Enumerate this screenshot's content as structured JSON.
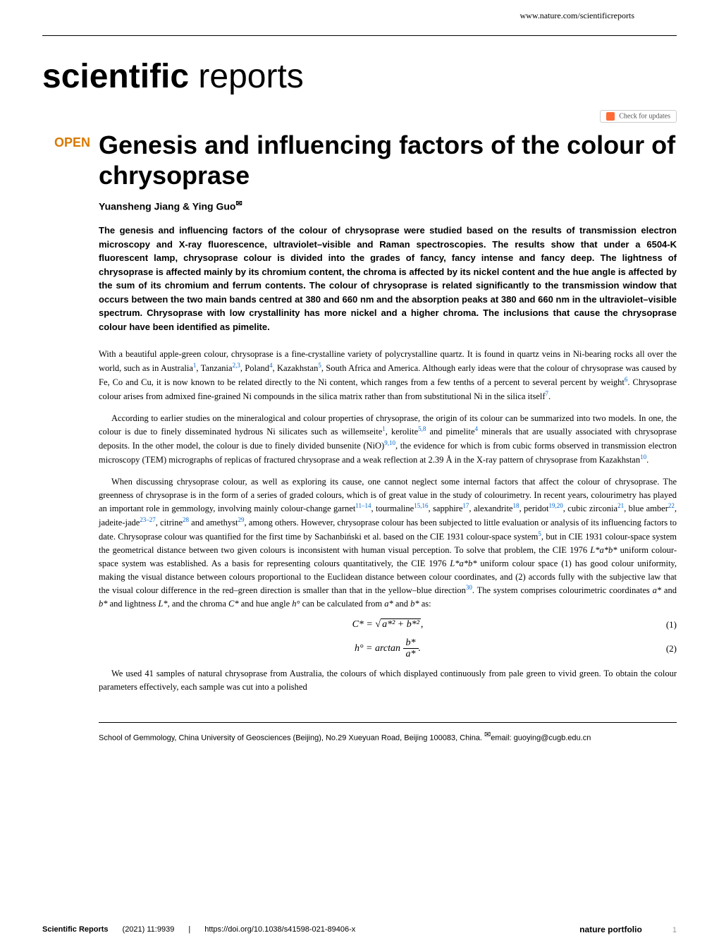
{
  "header": {
    "url": "www.nature.com/scientificreports"
  },
  "journal": {
    "name_bold": "scientific",
    "name_light": " reports"
  },
  "updates": {
    "label": "Check for updates"
  },
  "article": {
    "open_label": "OPEN",
    "title": "Genesis and influencing factors of the colour of chrysoprase",
    "authors": "Yuansheng Jiang & Ying Guo",
    "author_mark": "✉"
  },
  "abstract": {
    "text": "The genesis and influencing factors of the colour of chrysoprase were studied based on the results of transmission electron microscopy and X-ray fluorescence, ultraviolet–visible and Raman spectroscopies. The results show that under a 6504-K fluorescent lamp, chrysoprase colour is divided into the grades of fancy, fancy intense and fancy deep. The lightness of chrysoprase is affected mainly by its chromium content, the chroma is affected by its nickel content and the hue angle is affected by the sum of its chromium and ferrum contents. The colour of chrysoprase is related significantly to the transmission window that occurs between the two main bands centred at 380 and 660 nm and the absorption peaks at 380 and 660 nm in the ultraviolet–visible spectrum. Chrysoprase with low crystallinity has more nickel and a higher chroma. The inclusions that cause the chrysoprase colour have been identified as pimelite."
  },
  "paragraphs": {
    "p1": "With a beautiful apple-green colour, chrysoprase is a fine-crystalline variety of polycrystalline quartz. It is found in quartz veins in Ni-bearing rocks all over the world, such as in Australia",
    "p1b": ", Tanzania",
    "p1c": ", Poland",
    "p1d": ", Kazakhstan",
    "p1e": ", South Africa and America. Although early ideas were that the colour of chrysoprase was caused by Fe, Co and Cu, it is now known to be related directly to the Ni content, which ranges from a few tenths of a percent to several percent by weight",
    "p1f": ". Chrysoprase colour arises from admixed fine-grained Ni compounds in the silica matrix rather than from substitutional Ni in the silica itself",
    "p1g": ".",
    "p2a": "According to earlier studies on the mineralogical and colour properties of chrysoprase, the origin of its colour can be summarized into two models. In one, the colour is due to finely disseminated hydrous Ni silicates such as willemseite",
    "p2b": ", kerolite",
    "p2c": " and pimelite",
    "p2d": " minerals that are usually associated with chrysoprase deposits. In the other model, the colour is due to finely divided bunsenite (NiO)",
    "p2e": ", the evidence for which is from cubic forms observed in transmission electron microscopy (TEM) micrographs of replicas of fractured chrysoprase and a weak reflection at 2.39 Å in the X-ray pattern of chrysoprase from Kazakhstan",
    "p2f": ".",
    "p3a": "When discussing chrysoprase colour, as well as exploring its cause, one cannot neglect some internal factors that affect the colour of chrysoprase. The greenness of chrysoprase is in the form of a series of graded colours, which is of great value in the study of colourimetry. In recent years, colourimetry has played an important role in gemmology, involving mainly colour-change garnet",
    "p3b": ", tourmaline",
    "p3c": ", sapphire",
    "p3d": ", alexandrite",
    "p3e": ", peridot",
    "p3f": ", cubic zirconia",
    "p3g": ", blue amber",
    "p3h": ", jadeite-jade",
    "p3i": ", citrine",
    "p3j": " and amethyst",
    "p3k": ", among others. However, chrysoprase colour has been subjected to little evaluation or analysis of its influencing factors to date. Chrysoprase colour was quantified for the first time by Sachanbiński et al. based on the CIE 1931 colour-space system",
    "p3l": ", but in CIE 1931 colour-space system the geometrical distance between two given colours is inconsistent with human visual perception. To solve that problem, the CIE 1976 ",
    "p3m": " uniform colour-space system was established. As a basis for representing colours quantitatively, the CIE 1976 ",
    "p3n": " uniform colour space (1) has good colour uniformity, making the visual distance between colours proportional to the Euclidean distance between colour coordinates, and (2) accords fully with the subjective law that the visual colour difference in the red–green direction is smaller than that in the yellow–blue direction",
    "p3o": ". The system comprises colourimetric coordinates ",
    "p3p": " and ",
    "p3q": " and lightness ",
    "p3r": ", and the chroma ",
    "p3s": " and hue angle ",
    "p3t": " can be calculated from ",
    "p3u": " and ",
    "p3v": " as:",
    "p4": "We used 41 samples of natural chrysoprase from Australia, the colours of which displayed continuously from pale green to vivid green. To obtain the colour parameters effectively, each sample was cut into a polished"
  },
  "refs": {
    "r1": "1",
    "r23": "2,3",
    "r4": "4",
    "r5": "5",
    "r6": "6",
    "r7": "7",
    "r58": "5,8",
    "r910": "9,10",
    "r10": "10",
    "r1114": "11–14",
    "r1516": "15,16",
    "r17": "17",
    "r18": "18",
    "r1920": "19,20",
    "r21": "21",
    "r22": "22",
    "r2327": "23–27",
    "r28": "28",
    "r29": "29",
    "r30": "30"
  },
  "vars": {
    "lab": "L*a*b*",
    "a": "a*",
    "b": "b*",
    "L": "L*",
    "C": "C*",
    "h": "h°"
  },
  "equations": {
    "eq1_lhs": "C* = ",
    "eq1_sqrt": "a*² + b*²",
    "eq1_end": ",",
    "eq1_num": "(1)",
    "eq2_lhs": "h° = arctan ",
    "eq2_top": "b*",
    "eq2_bot": "a*",
    "eq2_end": ".",
    "eq2_num": "(2)"
  },
  "affiliation": {
    "text": "School of Gemmology, China University of Geosciences (Beijing), No.29 Xueyuan Road, Beijing 100083, China. ",
    "email_label": "email: ",
    "email": "guoying@cugb.edu.cn"
  },
  "footer": {
    "journal": "Scientific Reports",
    "year_vol": "(2021) 11:9939",
    "doi": "https://doi.org/10.1038/s41598-021-89406-x",
    "publisher": "nature portfolio",
    "page": "1"
  }
}
